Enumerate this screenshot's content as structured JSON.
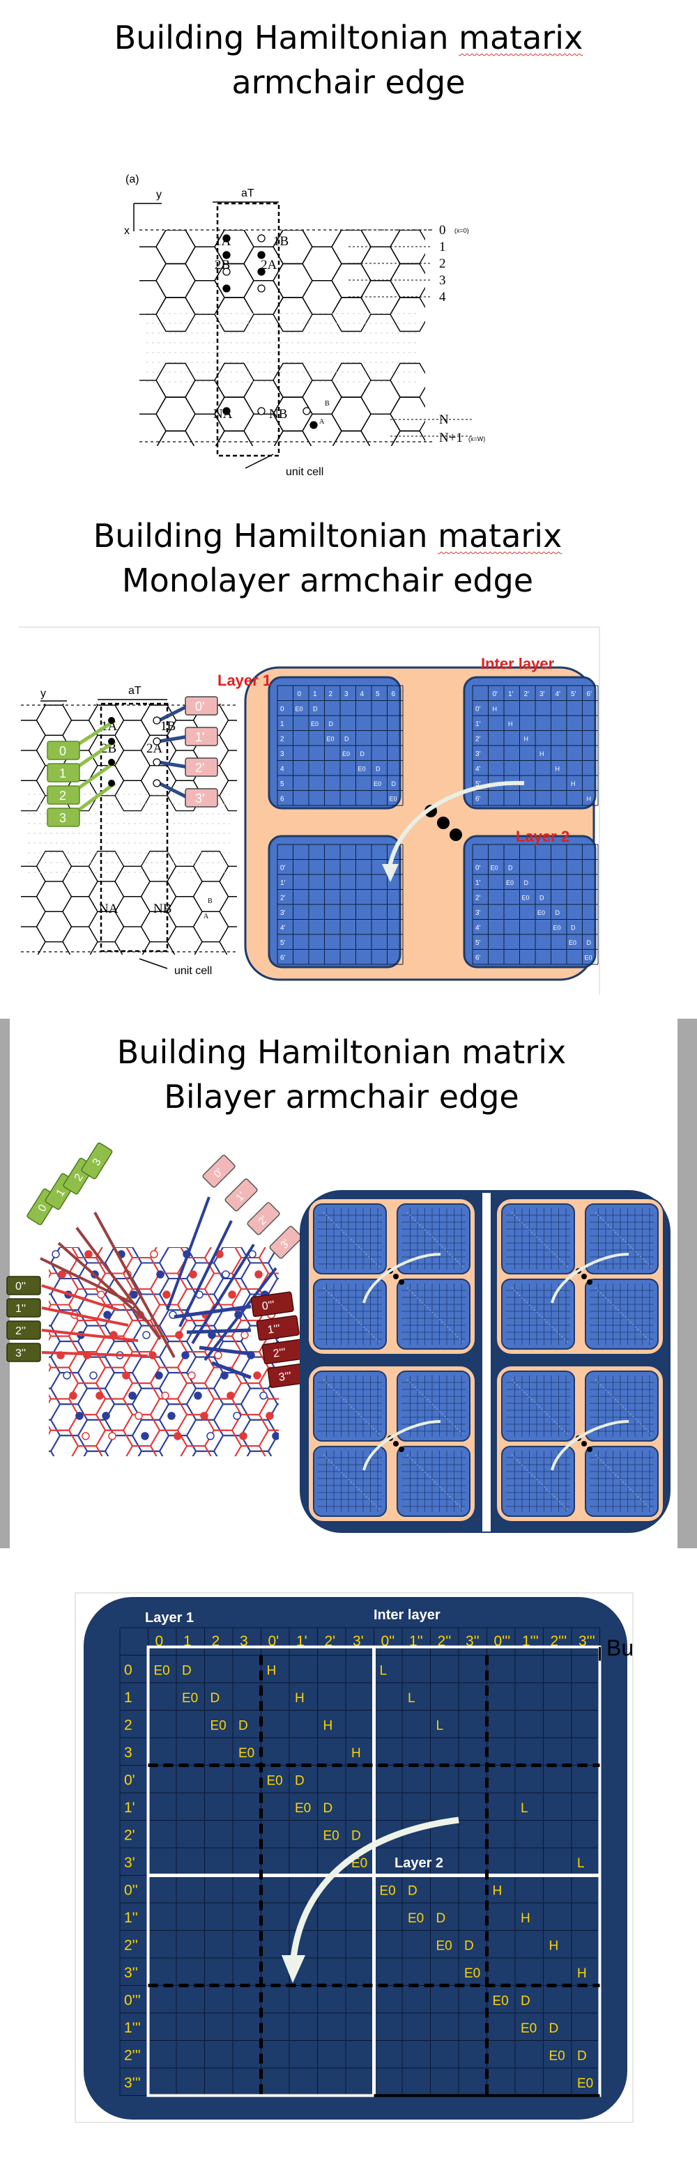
{
  "slide1": {
    "title_line1_a": "Building Hamiltonian ",
    "title_line1_b": "matarix",
    "title_line2": "armchair edge",
    "panel_label": "(a)",
    "axis_x": "x",
    "axis_y": "y",
    "period_label": "aT",
    "row_numbers": [
      "0",
      "1",
      "2",
      "3",
      "4",
      "N",
      "N+1"
    ],
    "x0_note": "(x=0)",
    "xw_note": "(x=W)",
    "site_labels": [
      "1A",
      "1B",
      "2B",
      "2A",
      "NA",
      "NB",
      "B",
      "A"
    ],
    "unit_cell_label": "unit cell"
  },
  "slide2": {
    "title_line1_a": "Building Hamiltonian ",
    "title_line1_b": "matarix",
    "title_line2": "Monolayer armchair edge",
    "axis_y": "y",
    "period_label": "aT",
    "left_tags": [
      "0",
      "1",
      "2",
      "3"
    ],
    "right_tags": [
      "0'",
      "1'",
      "2'",
      "3'"
    ],
    "site_labels": [
      "1A",
      "1B",
      "2B",
      "2A",
      "NA",
      "NB",
      "B",
      "A"
    ],
    "unit_cell_label": "unit cell",
    "layer1_label": "Layer 1",
    "inter_layer_label": "Inter layer",
    "layer2_label": "Layer 2",
    "q1_headers": [
      "0",
      "1",
      "2",
      "3",
      "4",
      "5",
      "6"
    ],
    "q2_headers": [
      "0'",
      "1'",
      "2'",
      "3'",
      "4'",
      "5'",
      "6'"
    ],
    "cell_e0": "E0",
    "cell_d": "D",
    "cell_h": "H"
  },
  "slide3": {
    "title_line1": "Building Hamiltonian matrix",
    "title_line2": "Bilayer armchair edge",
    "green_tags": [
      "0",
      "1",
      "2",
      "3"
    ],
    "pink_tags": [
      "0'",
      "1'",
      "2'",
      "3'"
    ],
    "dark_green_tags": [
      "0''",
      "1''",
      "2''",
      "3''"
    ],
    "dark_red_tags": [
      "0'''",
      "1'''",
      "2'''",
      "3'''"
    ]
  },
  "slide4": {
    "layer1_label": "Layer 1",
    "inter_layer_label": "Inter layer",
    "layer2_label": "Layer 2",
    "col_headers": [
      "0",
      "1",
      "2",
      "3",
      "0'",
      "1'",
      "2'",
      "3'",
      "0''",
      "1''",
      "2''",
      "3''",
      "0'''",
      "1'''",
      "2'''",
      "3'''"
    ],
    "row_headers": [
      "0",
      "1",
      "2",
      "3",
      "0'",
      "1'",
      "2'",
      "3'",
      "0''",
      "1''",
      "2''",
      "3''",
      "0'''",
      "1'''",
      "2'''",
      "3'''"
    ],
    "cut_text": "Bu",
    "e0": "E0",
    "d": "D",
    "h": "H",
    "l": "L"
  },
  "colors": {
    "matrix_blue": "#4a74c9",
    "matrix_dark": "#1d3b6b",
    "frame_orange": "#fbc8a0",
    "header_yellow": "#ffd400",
    "red_label": "#e02020",
    "green_tag": "#8fbf4a",
    "pink_tag": "#f2b8b8",
    "dark_green_tag": "#4f5a1c",
    "dark_red_tag": "#8c1c1c"
  }
}
